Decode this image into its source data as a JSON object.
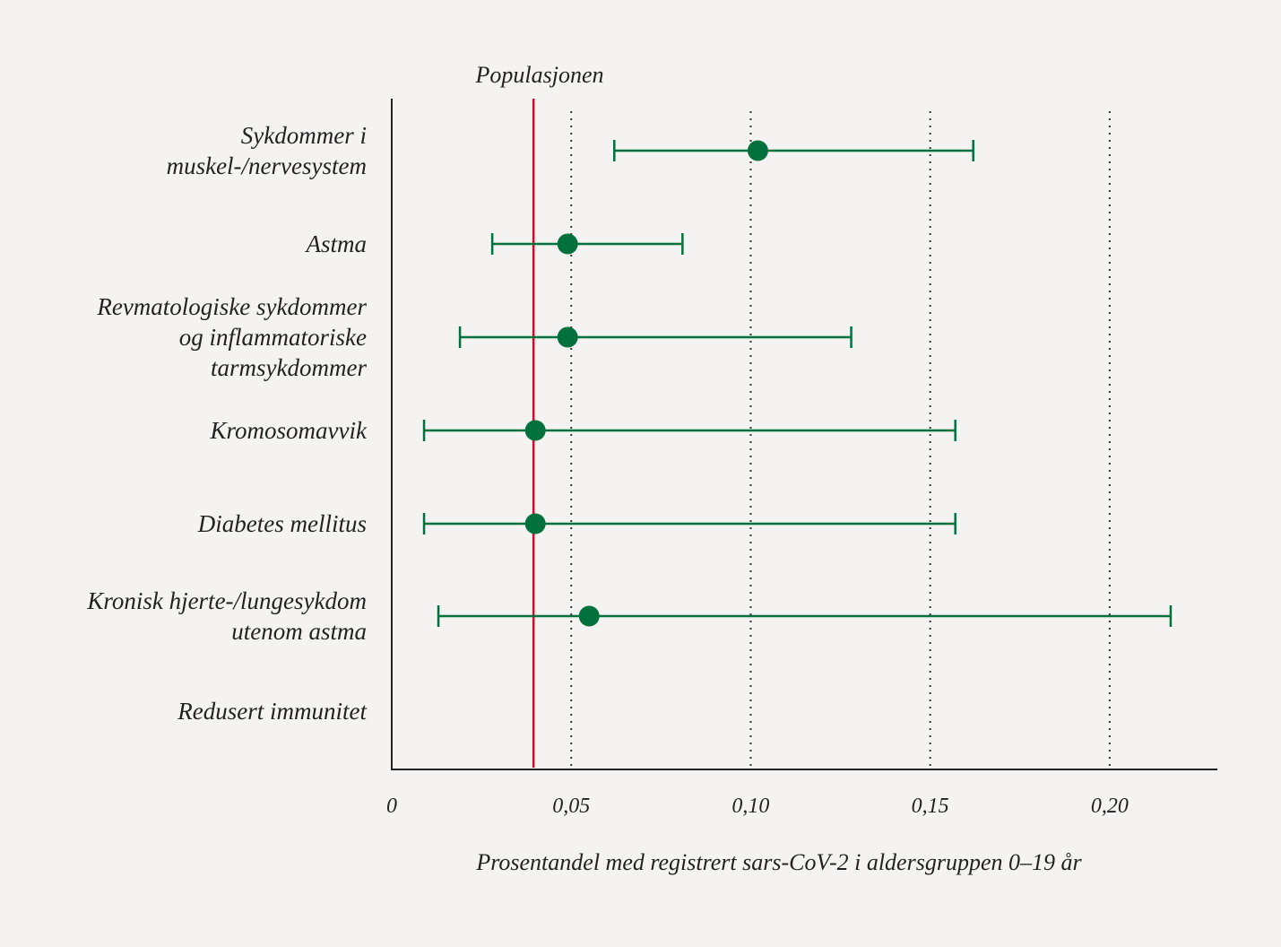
{
  "chart_data": {
    "type": "forest",
    "title": "",
    "xlabel": "Prosentandel med registrert sars-CoV-2 i aldersgruppen 0–19 år",
    "ylabel": "",
    "xlim": [
      0,
      0.23
    ],
    "xticks": [
      0,
      0.05,
      0.1,
      0.15,
      0.2
    ],
    "xtick_labels": [
      "0",
      "0,05",
      "0,10",
      "0,15",
      "0,20"
    ],
    "grid": "vertical dotted",
    "reference_line": {
      "label": "Populasjonen",
      "value": 0.0395,
      "color": "#c8102e"
    },
    "point_color": "#00703c",
    "categories": [
      {
        "label": [
          "Sykdommer i",
          "muskel-/nervesystem"
        ],
        "estimate": 0.102,
        "lower": 0.062,
        "upper": 0.162
      },
      {
        "label": [
          "Astma"
        ],
        "estimate": 0.049,
        "lower": 0.028,
        "upper": 0.081
      },
      {
        "label": [
          "Revmatologiske sykdommer",
          "og inflammatoriske",
          "tarmsykdommer"
        ],
        "estimate": 0.049,
        "lower": 0.019,
        "upper": 0.128
      },
      {
        "label": [
          "Kromosomavvik"
        ],
        "estimate": 0.04,
        "lower": 0.009,
        "upper": 0.157
      },
      {
        "label": [
          "Diabetes mellitus"
        ],
        "estimate": 0.04,
        "lower": 0.009,
        "upper": 0.157
      },
      {
        "label": [
          "Kronisk hjerte-/lungesykdom",
          "utenom astma"
        ],
        "estimate": 0.055,
        "lower": 0.013,
        "upper": 0.217
      },
      {
        "label": [
          "Redusert immunitet"
        ],
        "estimate": null,
        "lower": null,
        "upper": null
      }
    ]
  }
}
